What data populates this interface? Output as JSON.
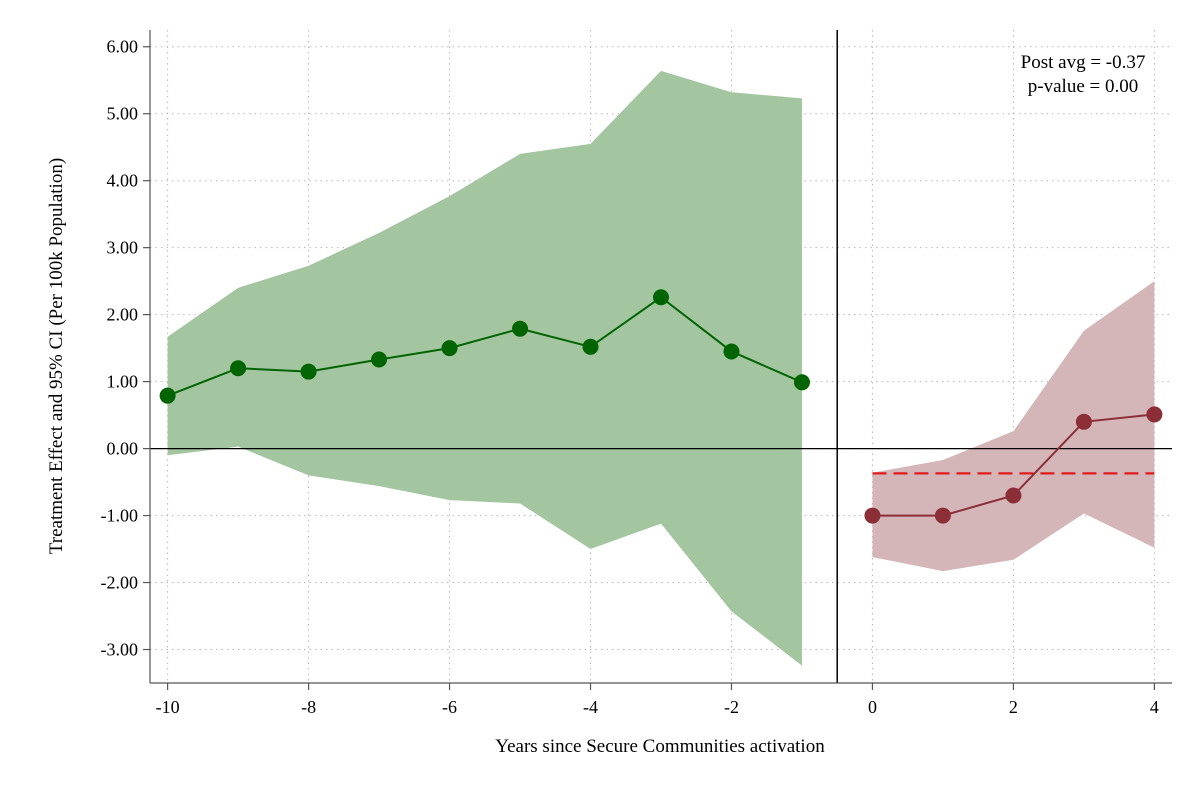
{
  "chart_data": {
    "type": "line",
    "xlabel": "Years since Secure Communities activation",
    "ylabel": "Treatment Effect and 95% CI (Per 100k Population)",
    "xlim": [
      -10.25,
      4.25
    ],
    "ylim": [
      -3.5,
      6.25
    ],
    "x_ticks": [
      -10,
      -8,
      -6,
      -4,
      -2,
      0,
      2,
      4
    ],
    "x_tick_labels": [
      "-10",
      "-8",
      "-6",
      "-4",
      "-2",
      "0",
      "2",
      "4"
    ],
    "y_ticks": [
      6,
      5,
      4,
      3,
      2,
      1,
      0,
      -1,
      -2,
      -3
    ],
    "y_tick_labels": [
      "6.00",
      "5.00",
      "4.00",
      "3.00",
      "2.00",
      "1.00",
      "0.00",
      "-1.00",
      "-2.00",
      "-3.00"
    ],
    "grid": true,
    "event_line_x": -0.5,
    "zero_line_y": 0,
    "series": [
      {
        "x": [
          -10,
          -9,
          -8,
          -7,
          -6,
          -5,
          -4,
          -3,
          -2,
          -1
        ],
        "values": [
          0.79,
          1.2,
          1.15,
          1.33,
          1.5,
          1.79,
          1.52,
          2.26,
          1.45,
          0.99
        ],
        "ci_upper": [
          1.67,
          2.4,
          2.73,
          3.22,
          3.77,
          4.4,
          4.55,
          5.64,
          5.32,
          5.23
        ],
        "ci_lower": [
          -0.1,
          0.03,
          -0.4,
          -0.56,
          -0.77,
          -0.82,
          -1.5,
          -1.12,
          -2.43,
          -3.24
        ],
        "color": "#006400",
        "band_color": "#a3c6a0"
      },
      {
        "x": [
          0,
          1,
          2,
          3,
          4
        ],
        "values": [
          -1.0,
          -1.0,
          -0.7,
          0.4,
          0.51
        ],
        "ci_upper": [
          -0.36,
          -0.17,
          0.26,
          1.76,
          2.5
        ],
        "ci_lower": [
          -1.62,
          -1.83,
          -1.66,
          -0.97,
          -1.48
        ],
        "color": "#8b2e36",
        "band_color": "#d5b6b8"
      }
    ],
    "post_average": {
      "value": -0.37,
      "x_range": [
        0,
        4
      ],
      "color": "#e31a1c"
    },
    "annotation": {
      "line1": "Post avg = -0.37",
      "line2": "p-value = 0.00"
    }
  }
}
